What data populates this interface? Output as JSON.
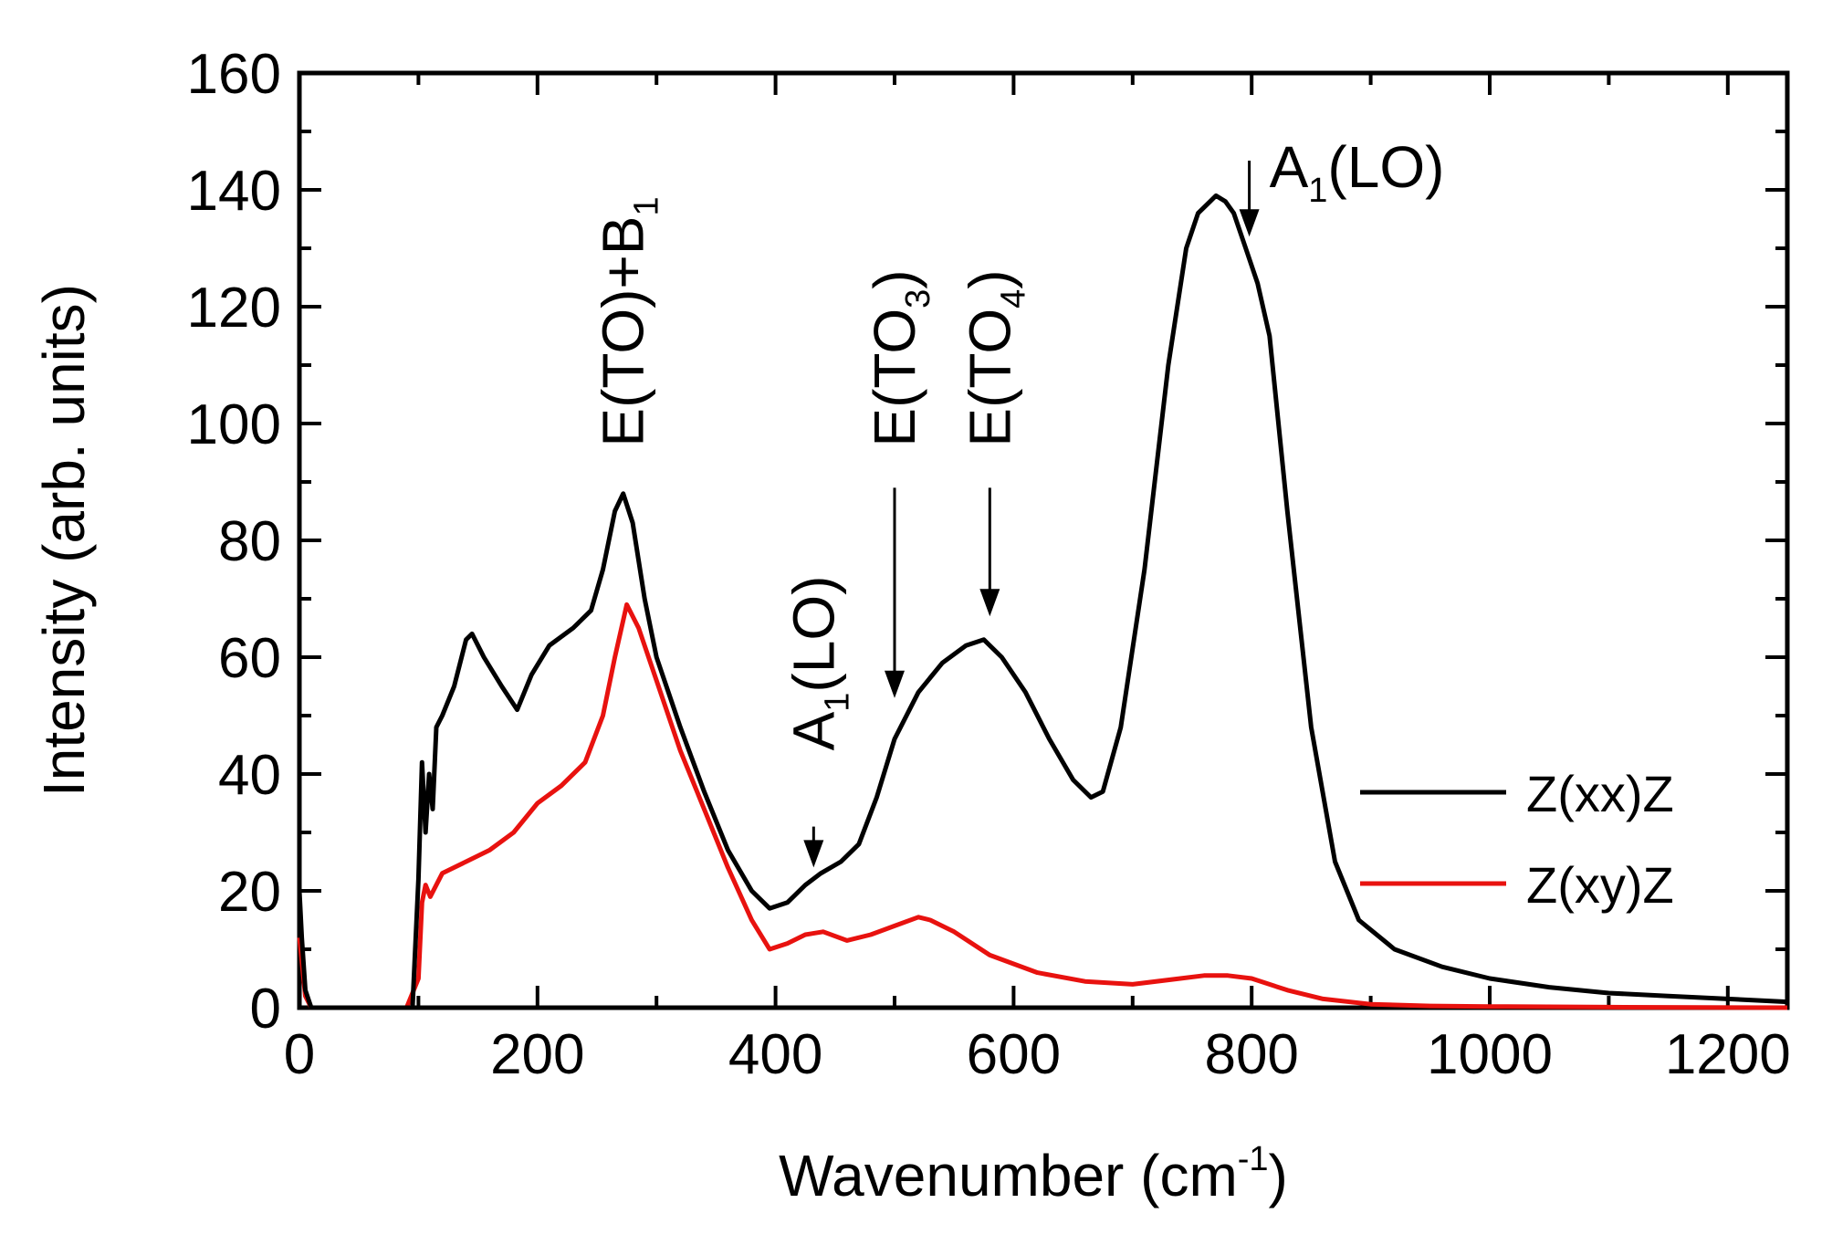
{
  "chart_data": {
    "type": "line",
    "title": "",
    "xlabel": "Wavenumber (cm",
    "xlabel_sup": "-1",
    "xlabel_close": ")",
    "ylabel": "Intensity (arb. units)",
    "xlim": [
      0,
      1250
    ],
    "ylim": [
      0,
      160
    ],
    "xticks": [
      0,
      200,
      400,
      600,
      800,
      1000,
      1200
    ],
    "yticks": [
      0,
      20,
      40,
      60,
      80,
      100,
      120,
      140,
      160
    ],
    "grid": false,
    "legend_position": "right-center",
    "series": [
      {
        "name": "Z(xx)Z",
        "color": "#000000",
        "x": [
          0,
          2,
          5,
          10,
          50,
          95,
          100,
          103,
          106,
          109,
          112,
          115,
          120,
          130,
          140,
          145,
          155,
          170,
          183,
          195,
          210,
          230,
          245,
          255,
          265,
          272,
          280,
          290,
          300,
          320,
          340,
          360,
          380,
          395,
          410,
          425,
          438,
          455,
          470,
          485,
          500,
          520,
          540,
          560,
          575,
          590,
          610,
          630,
          650,
          665,
          675,
          690,
          710,
          730,
          745,
          755,
          765,
          770,
          778,
          785,
          795,
          805,
          815,
          830,
          850,
          870,
          890,
          920,
          960,
          1000,
          1050,
          1100,
          1150,
          1200,
          1250
        ],
        "values": [
          20,
          12,
          3,
          0,
          0,
          0,
          22,
          42,
          30,
          40,
          34,
          48,
          50,
          55,
          63,
          64,
          60,
          55,
          51,
          57,
          62,
          65,
          68,
          75,
          85,
          88,
          83,
          70,
          60,
          48,
          37,
          27,
          20,
          17,
          18,
          21,
          23,
          25,
          28,
          36,
          46,
          54,
          59,
          62,
          63,
          60,
          54,
          46,
          39,
          36,
          37,
          48,
          75,
          110,
          130,
          136,
          138,
          139,
          138,
          136,
          130,
          124,
          115,
          85,
          48,
          25,
          15,
          10,
          7,
          5,
          3.5,
          2.5,
          2,
          1.5,
          1
        ]
      },
      {
        "name": "Z(xy)Z",
        "color": "#e8120f",
        "x": [
          0,
          2,
          5,
          10,
          50,
          90,
          100,
          103,
          106,
          110,
          120,
          140,
          160,
          180,
          200,
          220,
          240,
          255,
          265,
          275,
          285,
          300,
          320,
          340,
          360,
          380,
          395,
          410,
          425,
          440,
          460,
          480,
          500,
          520,
          530,
          550,
          580,
          620,
          660,
          700,
          740,
          760,
          780,
          800,
          830,
          860,
          900,
          950,
          1000,
          1100,
          1250
        ],
        "values": [
          12,
          8,
          2,
          0,
          0,
          0,
          5,
          18,
          21,
          19,
          23,
          25,
          27,
          30,
          35,
          38,
          42,
          50,
          60,
          69,
          65,
          56,
          44,
          34,
          24,
          15,
          10,
          11,
          12.5,
          13,
          11.5,
          12.5,
          14,
          15.5,
          15,
          13,
          9,
          6,
          4.5,
          4,
          5,
          5.5,
          5.5,
          5,
          3,
          1.5,
          0.6,
          0.3,
          0.2,
          0.1,
          0
        ]
      }
    ],
    "annotations": [
      {
        "id": "etob1",
        "main": "E(TO)+B",
        "sub": "1",
        "tail": "",
        "x": 272
      },
      {
        "id": "a1lo-left",
        "main": "A",
        "sub": "1",
        "tail": "(LO)",
        "x": 432,
        "arrow_from": 31,
        "arrow_to": 24
      },
      {
        "id": "eto3",
        "main": "E(TO",
        "sub": "3",
        "tail": ")",
        "x": 500,
        "arrow_from": 89,
        "arrow_to": 53
      },
      {
        "id": "eto4",
        "main": "E(TO",
        "sub": "4",
        "tail": ")",
        "x": 580,
        "arrow_from": 89,
        "arrow_to": 67
      },
      {
        "id": "a1lo-right",
        "main": "A",
        "sub": "1",
        "tail": "(LO)",
        "x": 798,
        "arrow_from": 145,
        "arrow_to": 132
      }
    ]
  }
}
